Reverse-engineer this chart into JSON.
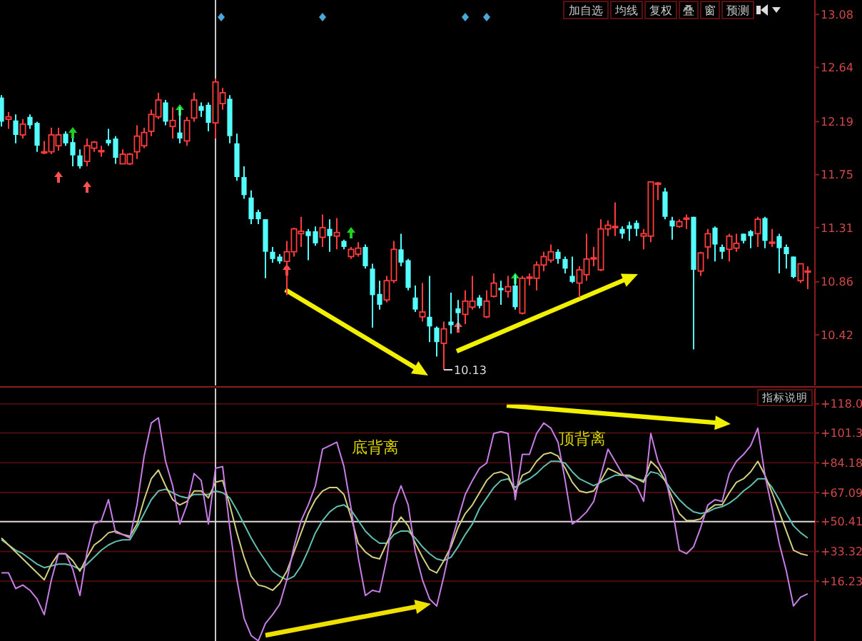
{
  "chart_data": [
    {
      "type": "candlestick",
      "categories": [
        null,
        null,
        null,
        null,
        null,
        null,
        null,
        null,
        null,
        null,
        null,
        null,
        null,
        null,
        null,
        null,
        null,
        null,
        null,
        null,
        null,
        null,
        null,
        null,
        null,
        null,
        null,
        null,
        null,
        null,
        null,
        null,
        null,
        null,
        null,
        null,
        null,
        null,
        null,
        null,
        null,
        null,
        null,
        null,
        null,
        null,
        null,
        null,
        null,
        null,
        null,
        null,
        null,
        null,
        null,
        null,
        null,
        null,
        null,
        null,
        null,
        null,
        null,
        null,
        null,
        null,
        null,
        null,
        null,
        null,
        null,
        null,
        null,
        null,
        null,
        null,
        null,
        null,
        null,
        null,
        null,
        null,
        null,
        null,
        null,
        null,
        null,
        null,
        null,
        null,
        null,
        null,
        null,
        null,
        null,
        null,
        null,
        null,
        null,
        null,
        null,
        null,
        null,
        null,
        null,
        null,
        null,
        null,
        null,
        null,
        null,
        null,
        null,
        null
      ],
      "ohlc": [
        [
          12.39,
          12.41,
          12.15,
          12.19
        ],
        [
          12.21,
          12.27,
          12.13,
          12.23
        ],
        [
          12.2,
          12.25,
          12.01,
          12.08
        ],
        [
          12.08,
          12.21,
          12.05,
          12.17
        ],
        [
          12.23,
          12.25,
          12.13,
          12.16
        ],
        [
          12.18,
          12.19,
          11.94,
          11.99
        ],
        [
          11.93,
          12.03,
          11.92,
          11.94
        ],
        [
          11.94,
          12.14,
          11.92,
          12.08
        ],
        [
          11.99,
          12.14,
          11.95,
          12.08
        ],
        [
          12.09,
          12.11,
          11.99,
          12.01
        ],
        [
          12.02,
          12.05,
          11.82,
          11.91
        ],
        [
          11.91,
          11.96,
          11.8,
          11.82
        ],
        [
          11.86,
          12.05,
          11.82,
          11.99
        ],
        [
          11.97,
          12.03,
          11.94,
          12.02
        ],
        [
          11.94,
          11.99,
          11.9,
          11.95
        ],
        [
          12.04,
          12.13,
          11.99,
          12.01
        ],
        [
          12.05,
          12.07,
          11.84,
          11.89
        ],
        [
          11.84,
          11.96,
          11.84,
          11.92
        ],
        [
          11.84,
          11.93,
          11.83,
          11.92
        ],
        [
          11.94,
          12.16,
          11.88,
          12.07
        ],
        [
          11.99,
          12.14,
          11.97,
          12.1
        ],
        [
          12.11,
          12.29,
          12.07,
          12.25
        ],
        [
          12.23,
          12.43,
          12.21,
          12.37
        ],
        [
          12.35,
          12.37,
          12.16,
          12.19
        ],
        [
          12.15,
          12.31,
          12.05,
          12.2
        ],
        [
          12.1,
          12.31,
          12.01,
          12.05
        ],
        [
          12.03,
          12.23,
          11.99,
          12.2
        ],
        [
          12.22,
          12.43,
          12.19,
          12.37
        ],
        [
          12.32,
          12.35,
          12.23,
          12.28
        ],
        [
          12.33,
          12.35,
          12.11,
          12.18
        ],
        [
          12.18,
          12.55,
          12.05,
          12.52
        ],
        [
          12.34,
          12.47,
          12.29,
          12.43
        ],
        [
          12.38,
          12.41,
          12.01,
          12.07
        ],
        [
          12.01,
          12.09,
          11.7,
          11.73
        ],
        [
          11.73,
          11.82,
          11.55,
          11.58
        ],
        [
          11.56,
          11.62,
          11.34,
          11.38
        ],
        [
          11.44,
          11.46,
          11.34,
          11.38
        ],
        [
          11.38,
          11.38,
          10.89,
          11.11
        ],
        [
          11.11,
          11.15,
          11.02,
          11.05
        ],
        [
          11.07,
          11.09,
          11.01,
          11.03
        ],
        [
          11.03,
          11.2,
          10.75,
          11.11
        ],
        [
          11.11,
          11.31,
          11.07,
          11.3
        ],
        [
          11.26,
          11.4,
          11.15,
          11.28
        ],
        [
          11.28,
          11.3,
          11.04,
          11.24
        ],
        [
          11.28,
          11.32,
          11.16,
          11.18
        ],
        [
          11.23,
          11.42,
          11.15,
          11.31
        ],
        [
          11.3,
          11.38,
          11.11,
          11.24
        ],
        [
          11.24,
          11.39,
          11.13,
          11.27
        ],
        [
          11.2,
          11.21,
          11.13,
          11.15
        ],
        [
          11.07,
          11.15,
          11.05,
          11.13
        ],
        [
          11.09,
          11.19,
          11.07,
          11.14
        ],
        [
          11.15,
          11.17,
          10.97,
          10.99
        ],
        [
          10.97,
          11.01,
          10.48,
          10.75
        ],
        [
          10.76,
          10.87,
          10.63,
          10.67
        ],
        [
          10.71,
          10.91,
          10.69,
          10.87
        ],
        [
          10.87,
          11.2,
          10.85,
          11.13
        ],
        [
          11.13,
          11.26,
          10.99,
          11.02
        ],
        [
          11.04,
          11.05,
          10.79,
          10.81
        ],
        [
          10.73,
          10.83,
          10.61,
          10.63
        ],
        [
          10.57,
          10.85,
          10.53,
          10.61
        ],
        [
          10.57,
          10.91,
          10.36,
          10.49
        ],
        [
          10.48,
          10.49,
          10.24,
          10.36
        ],
        [
          10.35,
          10.53,
          10.13,
          10.47
        ],
        [
          10.53,
          10.77,
          10.43,
          10.5
        ],
        [
          10.64,
          10.71,
          10.47,
          10.6
        ],
        [
          10.59,
          10.79,
          10.51,
          10.7
        ],
        [
          10.65,
          10.91,
          10.63,
          10.7
        ],
        [
          10.73,
          10.75,
          10.64,
          10.66
        ],
        [
          10.57,
          10.79,
          10.56,
          10.7
        ],
        [
          10.74,
          10.93,
          10.73,
          10.85
        ],
        [
          10.81,
          10.87,
          10.67,
          10.79
        ],
        [
          10.78,
          10.91,
          10.73,
          10.82
        ],
        [
          10.83,
          10.92,
          10.63,
          10.65
        ],
        [
          10.6,
          10.91,
          10.59,
          10.89
        ],
        [
          10.89,
          10.93,
          10.83,
          10.9
        ],
        [
          10.89,
          11.03,
          10.79,
          11.0
        ],
        [
          11.0,
          11.11,
          10.95,
          11.07
        ],
        [
          11.04,
          11.17,
          11.02,
          11.11
        ],
        [
          11.11,
          11.13,
          11.01,
          11.05
        ],
        [
          11.05,
          11.07,
          10.93,
          10.97
        ],
        [
          10.91,
          11.07,
          10.85,
          10.86
        ],
        [
          10.85,
          10.99,
          10.73,
          10.96
        ],
        [
          10.92,
          11.26,
          10.87,
          11.05
        ],
        [
          11.05,
          11.15,
          10.99,
          11.06
        ],
        [
          10.96,
          11.38,
          10.95,
          11.3
        ],
        [
          11.3,
          11.37,
          11.24,
          11.33
        ],
        [
          11.31,
          11.52,
          11.24,
          11.32
        ],
        [
          11.3,
          11.32,
          11.22,
          11.26
        ],
        [
          11.33,
          11.36,
          11.2,
          11.3
        ],
        [
          11.35,
          11.37,
          11.24,
          11.3
        ],
        [
          11.24,
          11.3,
          11.13,
          11.26
        ],
        [
          11.24,
          11.69,
          11.19,
          11.69
        ],
        [
          11.67,
          11.69,
          11.54,
          11.68
        ],
        [
          11.61,
          11.64,
          11.38,
          11.4
        ],
        [
          11.37,
          11.4,
          11.21,
          11.32
        ],
        [
          11.32,
          11.38,
          11.31,
          11.36
        ],
        [
          11.38,
          11.42,
          11.3,
          11.39
        ],
        [
          11.4,
          11.4,
          10.3,
          10.96
        ],
        [
          10.95,
          11.11,
          10.91,
          11.1
        ],
        [
          11.15,
          11.3,
          11.05,
          11.26
        ],
        [
          11.31,
          11.32,
          11.03,
          11.17
        ],
        [
          11.15,
          11.17,
          11.05,
          11.11
        ],
        [
          11.13,
          11.26,
          11.03,
          11.24
        ],
        [
          11.14,
          11.26,
          11.11,
          11.18
        ],
        [
          11.26,
          11.26,
          11.18,
          11.2
        ],
        [
          11.28,
          11.29,
          11.14,
          11.24
        ],
        [
          11.26,
          11.4,
          11.15,
          11.38
        ],
        [
          11.39,
          11.4,
          11.14,
          11.2
        ],
        [
          11.18,
          11.3,
          11.15,
          11.19
        ],
        [
          11.24,
          11.26,
          10.93,
          11.14
        ],
        [
          11.15,
          11.17,
          10.97,
          11.09
        ],
        [
          11.07,
          11.07,
          10.89,
          10.9
        ],
        [
          10.87,
          11.01,
          10.85,
          11.01
        ],
        [
          10.95,
          10.99,
          10.8,
          10.95
        ]
      ],
      "colors": [
        "#54fcfc",
        "#ff3c3c",
        "#54fcfc",
        "#ff3c3c",
        "#54fcfc",
        "#54fcfc",
        "#ff3c3c",
        "#ff3c3c",
        "#ff3c3c",
        "#54fcfc",
        "#54fcfc",
        "#54fcfc",
        "#ff3c3c",
        "#ff3c3c",
        "#ff3c3c",
        "#54fcfc",
        "#54fcfc",
        "#ff3c3c",
        "#ff3c3c",
        "#ff3c3c",
        "#ff3c3c",
        "#ff3c3c",
        "#ff3c3c",
        "#54fcfc",
        "#ff3c3c",
        "#54fcfc",
        "#ff3c3c",
        "#ff3c3c",
        "#54fcfc",
        "#54fcfc",
        "#ff3c3c",
        "#ff3c3c",
        "#54fcfc",
        "#54fcfc",
        "#54fcfc",
        "#54fcfc",
        "#54fcfc",
        "#54fcfc",
        "#54fcfc",
        "#54fcfc",
        "#ff3c3c",
        "#ff3c3c",
        "#ff3c3c",
        "#54fcfc",
        "#54fcfc",
        "#ff3c3c",
        "#54fcfc",
        "#ff3c3c",
        "#54fcfc",
        "#ff3c3c",
        "#ff3c3c",
        "#54fcfc",
        "#54fcfc",
        "#54fcfc",
        "#ff3c3c",
        "#ff3c3c",
        "#54fcfc",
        "#54fcfc",
        "#54fcfc",
        "#ff3c3c",
        "#54fcfc",
        "#54fcfc",
        "#ff3c3c",
        "#54fcfc",
        "#54fcfc",
        "#ff3c3c",
        "#ff3c3c",
        "#54fcfc",
        "#ff3c3c",
        "#ff3c3c",
        "#54fcfc",
        "#ff3c3c",
        "#54fcfc",
        "#ff3c3c",
        "#ff3c3c",
        "#ff3c3c",
        "#ff3c3c",
        "#ff3c3c",
        "#54fcfc",
        "#54fcfc",
        "#54fcfc",
        "#ff3c3c",
        "#ff3c3c",
        "#ff3c3c",
        "#ff3c3c",
        "#ff3c3c",
        "#ff3c3c",
        "#54fcfc",
        "#54fcfc",
        "#54fcfc",
        "#ff3c3c",
        "#ff3c3c",
        "#ff3c3c",
        "#54fcfc",
        "#54fcfc",
        "#ff3c3c",
        "#ff3c3c",
        "#54fcfc",
        "#ff3c3c",
        "#ff3c3c",
        "#54fcfc",
        "#54fcfc",
        "#ff3c3c",
        "#ff3c3c",
        "#54fcfc",
        "#54fcfc",
        "#ff3c3c",
        "#54fcfc",
        "#ff3c3c",
        "#54fcfc",
        "#54fcfc",
        "#54fcfc",
        "#ff3c3c",
        "#ff3c3c"
      ],
      "ylim": [
        10.0,
        13.2
      ],
      "yticks": [
        13.08,
        12.64,
        12.19,
        11.75,
        11.31,
        10.86,
        10.42
      ],
      "annotations": [
        "加自选",
        "均线",
        "复权",
        "叠",
        "窗",
        "预测",
        "10.13"
      ]
    },
    {
      "type": "line",
      "categories": [
        null,
        null,
        null,
        null,
        null,
        null,
        null,
        null,
        null,
        null,
        null,
        null,
        null,
        null,
        null,
        null,
        null,
        null,
        null,
        null,
        null,
        null,
        null,
        null,
        null,
        null,
        null,
        null,
        null,
        null,
        null,
        null,
        null,
        null,
        null,
        null,
        null,
        null,
        null,
        null,
        null,
        null,
        null,
        null,
        null,
        null,
        null,
        null,
        null,
        null,
        null,
        null,
        null,
        null,
        null,
        null,
        null,
        null,
        null,
        null,
        null,
        null,
        null,
        null,
        null,
        null,
        null,
        null,
        null,
        null,
        null,
        null,
        null,
        null,
        null,
        null,
        null,
        null,
        null,
        null,
        null,
        null,
        null,
        null,
        null,
        null,
        null,
        null,
        null,
        null,
        null,
        null,
        null,
        null,
        null,
        null,
        null,
        null,
        null,
        null,
        null,
        null,
        null,
        null,
        null,
        null,
        null,
        null,
        null,
        null,
        null,
        null,
        null,
        null
      ],
      "series": [
        {
          "color": "#5fc0b0",
          "values": [
            40,
            37,
            34,
            32,
            29,
            26,
            24,
            25,
            26,
            26,
            25,
            23,
            26,
            30,
            34,
            37,
            39,
            40,
            40,
            47,
            55,
            63,
            68,
            69,
            67,
            65,
            64,
            66,
            66,
            66,
            68,
            67,
            64,
            57,
            49,
            41,
            34,
            28,
            22,
            19,
            17,
            19,
            25,
            34,
            44,
            51,
            56,
            59,
            60,
            57,
            51,
            45,
            41,
            38,
            38,
            43,
            45,
            45,
            41,
            36,
            32,
            29,
            28,
            30,
            36,
            43,
            49,
            58,
            64,
            70,
            74,
            75,
            70,
            73,
            75,
            78,
            82,
            85,
            85,
            84,
            79,
            75,
            73,
            71,
            73,
            75,
            77,
            77,
            76,
            75,
            74,
            79,
            78,
            74,
            68,
            63,
            59,
            56,
            55,
            56,
            58,
            59,
            61,
            64,
            68,
            71,
            75,
            75,
            70,
            63,
            55,
            48,
            44,
            41
          ]
        },
        {
          "color": "#d2d080",
          "values": [
            41,
            37,
            33,
            29,
            25,
            21,
            17,
            26,
            32,
            32,
            28,
            22,
            30,
            37,
            40,
            44,
            45,
            43,
            42,
            49,
            63,
            75,
            80,
            71,
            63,
            60,
            62,
            68,
            68,
            64,
            73,
            74,
            60,
            44,
            30,
            19,
            14,
            13,
            11,
            15,
            22,
            33,
            44,
            55,
            63,
            68,
            70,
            70,
            66,
            53,
            38,
            33,
            30,
            29,
            38,
            47,
            53,
            48,
            38,
            30,
            23,
            21,
            28,
            36,
            47,
            55,
            60,
            67,
            74,
            78,
            79,
            77,
            67,
            77,
            79,
            85,
            89,
            90,
            88,
            81,
            73,
            68,
            67,
            68,
            74,
            81,
            79,
            77,
            77,
            75,
            73,
            85,
            81,
            74,
            64,
            55,
            51,
            51,
            52,
            57,
            60,
            60,
            67,
            73,
            75,
            79,
            85,
            77,
            67,
            56,
            45,
            34,
            32,
            31
          ]
        },
        {
          "color": "#c87ee6",
          "values": [
            21,
            21,
            12,
            14,
            11,
            6,
            -3,
            17,
            32,
            32,
            23,
            8,
            33,
            49,
            51,
            63,
            44,
            43,
            41,
            60,
            88,
            107,
            110,
            85,
            71,
            49,
            60,
            78,
            74,
            49,
            81,
            82,
            47,
            17,
            -5,
            -15,
            -18,
            -8,
            -3,
            3,
            17,
            36,
            51,
            60,
            71,
            92,
            94,
            96,
            82,
            58,
            30,
            8,
            11,
            10,
            29,
            60,
            71,
            60,
            33,
            17,
            6,
            2,
            19,
            38,
            52,
            66,
            74,
            81,
            84,
            101,
            102,
            101,
            63,
            89,
            89,
            101,
            107,
            104,
            96,
            74,
            49,
            52,
            56,
            62,
            77,
            92,
            85,
            78,
            74,
            71,
            62,
            101,
            85,
            77,
            58,
            34,
            32,
            36,
            47,
            60,
            63,
            62,
            78,
            85,
            89,
            94,
            104,
            77,
            58,
            38,
            22,
            2,
            7,
            9
          ]
        }
      ],
      "ylim": [
        -18.1,
        126.9
      ],
      "yticks": [
        {
          "value": 118.0,
          "label": "+118.0"
        },
        {
          "value": 101.3,
          "label": "+101.3"
        },
        {
          "value": 84.18,
          "label": "+84.18"
        },
        {
          "value": 67.09,
          "label": "+67.09"
        },
        {
          "value": 50.41,
          "label": "+50.41"
        },
        {
          "value": 33.32,
          "label": "+33.32"
        },
        {
          "value": 16.23,
          "label": "+16.23"
        }
      ],
      "grid": "y",
      "ref_lines": [
        {
          "axis": "y",
          "value": 50.41,
          "color": "#d8d8d8"
        }
      ],
      "annotations": [
        "指标说明",
        "底背离",
        "顶背离"
      ]
    }
  ]
}
